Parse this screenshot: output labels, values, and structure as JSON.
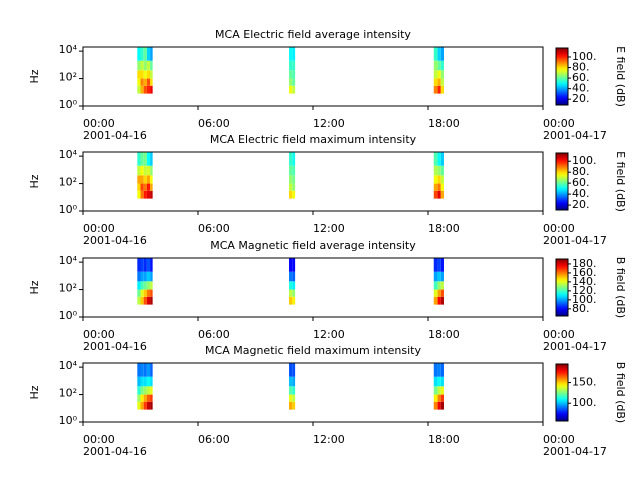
{
  "chart_data": [
    {
      "type": "spectrogram",
      "title": "MCA  Electric field average intensity",
      "ylabel": "Hz",
      "colorbar_label": "E field (dB)",
      "colormap": "jet",
      "yscale": "log",
      "xlim": [
        "2001-04-16T00:00",
        "2001-04-17T00:00"
      ],
      "xticks": [
        {
          "value": "2001-04-16T00:00",
          "label": "00:00",
          "date": "2001-04-16"
        },
        {
          "value": "2001-04-16T06:00",
          "label": "06:00"
        },
        {
          "value": "2001-04-16T12:00",
          "label": "12:00"
        },
        {
          "value": "2001-04-16T18:00",
          "label": "18:00"
        },
        {
          "value": "2001-04-17T00:00",
          "label": "00:00",
          "date": "2001-04-17"
        }
      ],
      "ylim": [
        1,
        20000
      ],
      "yticks": [
        {
          "value": 1,
          "label": "10⁰"
        },
        {
          "value": 100,
          "label": "10²"
        },
        {
          "value": 10000,
          "label": "10⁴"
        }
      ],
      "clim": [
        9,
        117
      ],
      "cticks": [
        {
          "value": 20,
          "label": "20."
        },
        {
          "value": 40,
          "label": "40."
        },
        {
          "value": 60,
          "label": "60."
        },
        {
          "value": 80,
          "label": "80."
        },
        {
          "value": 100,
          "label": "100."
        }
      ],
      "time_bins": [
        [
          "2001-04-16T02:50",
          "2001-04-16T03:00"
        ],
        [
          "2001-04-16T03:00",
          "2001-04-16T03:10"
        ],
        [
          "2001-04-16T03:10",
          "2001-04-16T03:20"
        ],
        [
          "2001-04-16T03:20",
          "2001-04-16T03:30"
        ],
        [
          "2001-04-16T03:30",
          "2001-04-16T03:38"
        ],
        [
          "2001-04-16T10:45",
          "2001-04-16T10:55"
        ],
        [
          "2001-04-16T10:55",
          "2001-04-16T11:04"
        ],
        [
          "2001-04-16T18:18",
          "2001-04-16T18:30"
        ],
        [
          "2001-04-16T18:30",
          "2001-04-16T18:40"
        ],
        [
          "2001-04-16T18:40",
          "2001-04-16T18:50"
        ]
      ],
      "freq_bins": [
        8,
        30,
        100,
        400,
        2000,
        20000
      ],
      "z": [
        [
          70,
          75,
          80,
          65,
          50
        ],
        [
          85,
          90,
          80,
          70,
          55
        ],
        [
          95,
          85,
          75,
          65,
          60
        ],
        [
          100,
          95,
          80,
          70,
          45
        ],
        [
          105,
          80,
          70,
          60,
          40
        ],
        [
          75,
          65,
          60,
          55,
          50
        ],
        [
          70,
          60,
          58,
          55,
          48
        ],
        [
          90,
          80,
          70,
          65,
          55
        ],
        [
          100,
          85,
          75,
          60,
          45
        ],
        [
          80,
          70,
          65,
          55,
          40
        ]
      ]
    },
    {
      "type": "spectrogram",
      "title": "MCA  Electric field maximum intensity",
      "ylabel": "Hz",
      "colorbar_label": "E field (dB)",
      "colormap": "jet",
      "yscale": "log",
      "xlim": [
        "2001-04-16T00:00",
        "2001-04-17T00:00"
      ],
      "xticks": [
        {
          "value": "2001-04-16T00:00",
          "label": "00:00",
          "date": "2001-04-16"
        },
        {
          "value": "2001-04-16T06:00",
          "label": "06:00"
        },
        {
          "value": "2001-04-16T12:00",
          "label": "12:00"
        },
        {
          "value": "2001-04-16T18:00",
          "label": "18:00"
        },
        {
          "value": "2001-04-17T00:00",
          "label": "00:00",
          "date": "2001-04-17"
        }
      ],
      "ylim": [
        1,
        20000
      ],
      "yticks": [
        {
          "value": 1,
          "label": "10⁰"
        },
        {
          "value": 100,
          "label": "10²"
        },
        {
          "value": 10000,
          "label": "10⁴"
        }
      ],
      "clim": [
        11,
        115
      ],
      "cticks": [
        {
          "value": 20,
          "label": "20."
        },
        {
          "value": 40,
          "label": "40."
        },
        {
          "value": 60,
          "label": "60."
        },
        {
          "value": 80,
          "label": "80."
        },
        {
          "value": 100,
          "label": "100."
        }
      ],
      "time_bins": [
        [
          "2001-04-16T02:50",
          "2001-04-16T03:00"
        ],
        [
          "2001-04-16T03:00",
          "2001-04-16T03:10"
        ],
        [
          "2001-04-16T03:10",
          "2001-04-16T03:20"
        ],
        [
          "2001-04-16T03:20",
          "2001-04-16T03:30"
        ],
        [
          "2001-04-16T03:30",
          "2001-04-16T03:38"
        ],
        [
          "2001-04-16T10:45",
          "2001-04-16T10:55"
        ],
        [
          "2001-04-16T10:55",
          "2001-04-16T11:04"
        ],
        [
          "2001-04-16T18:18",
          "2001-04-16T18:30"
        ],
        [
          "2001-04-16T18:30",
          "2001-04-16T18:40"
        ],
        [
          "2001-04-16T18:40",
          "2001-04-16T18:50"
        ]
      ],
      "freq_bins": [
        8,
        30,
        100,
        400,
        2000,
        20000
      ],
      "z": [
        [
          75,
          80,
          85,
          70,
          55
        ],
        [
          90,
          95,
          85,
          75,
          60
        ],
        [
          100,
          90,
          80,
          70,
          62
        ],
        [
          105,
          100,
          85,
          72,
          50
        ],
        [
          108,
          85,
          75,
          65,
          45
        ],
        [
          80,
          70,
          65,
          60,
          55
        ],
        [
          75,
          65,
          62,
          58,
          52
        ],
        [
          95,
          85,
          75,
          68,
          58
        ],
        [
          105,
          90,
          80,
          65,
          50
        ],
        [
          85,
          75,
          70,
          60,
          45
        ]
      ]
    },
    {
      "type": "spectrogram",
      "title": "MCA  Magnetic field average intensity",
      "ylabel": "Hz",
      "colorbar_label": "B field (dB)",
      "colormap": "jet",
      "yscale": "log",
      "xlim": [
        "2001-04-16T00:00",
        "2001-04-17T00:00"
      ],
      "xticks": [
        {
          "value": "2001-04-16T00:00",
          "label": "00:00",
          "date": "2001-04-16"
        },
        {
          "value": "2001-04-16T06:00",
          "label": "06:00"
        },
        {
          "value": "2001-04-16T12:00",
          "label": "12:00"
        },
        {
          "value": "2001-04-16T18:00",
          "label": "18:00"
        },
        {
          "value": "2001-04-17T00:00",
          "label": "00:00",
          "date": "2001-04-17"
        }
      ],
      "ylim": [
        1,
        20000
      ],
      "yticks": [
        {
          "value": 1,
          "label": "10⁰"
        },
        {
          "value": 100,
          "label": "10²"
        },
        {
          "value": 10000,
          "label": "10⁴"
        }
      ],
      "clim": [
        64,
        191
      ],
      "cticks": [
        {
          "value": 80,
          "label": "80."
        },
        {
          "value": 100,
          "label": "100."
        },
        {
          "value": 120,
          "label": "120."
        },
        {
          "value": 140,
          "label": "140."
        },
        {
          "value": 160,
          "label": "160."
        },
        {
          "value": 180,
          "label": "180."
        }
      ],
      "time_bins": [
        [
          "2001-04-16T02:50",
          "2001-04-16T03:00"
        ],
        [
          "2001-04-16T03:00",
          "2001-04-16T03:10"
        ],
        [
          "2001-04-16T03:10",
          "2001-04-16T03:20"
        ],
        [
          "2001-04-16T03:20",
          "2001-04-16T03:30"
        ],
        [
          "2001-04-16T03:30",
          "2001-04-16T03:38"
        ],
        [
          "2001-04-16T10:45",
          "2001-04-16T10:55"
        ],
        [
          "2001-04-16T10:55",
          "2001-04-16T11:04"
        ],
        [
          "2001-04-16T18:18",
          "2001-04-16T18:30"
        ],
        [
          "2001-04-16T18:30",
          "2001-04-16T18:40"
        ],
        [
          "2001-04-16T18:40",
          "2001-04-16T18:50"
        ]
      ],
      "freq_bins": [
        8,
        30,
        100,
        400,
        2000,
        20000
      ],
      "z": [
        [
          135,
          125,
          110,
          95,
          85
        ],
        [
          150,
          140,
          120,
          100,
          88
        ],
        [
          165,
          150,
          125,
          100,
          85
        ],
        [
          180,
          160,
          130,
          105,
          90
        ],
        [
          185,
          165,
          135,
          100,
          82
        ],
        [
          150,
          135,
          115,
          95,
          80
        ],
        [
          145,
          130,
          110,
          92,
          80
        ],
        [
          155,
          140,
          120,
          100,
          85
        ],
        [
          175,
          155,
          130,
          105,
          88
        ],
        [
          185,
          165,
          135,
          100,
          82
        ]
      ]
    },
    {
      "type": "spectrogram",
      "title": "MCA  Magnetic field maximum intensity",
      "ylabel": "Hz",
      "colorbar_label": "B field (dB)",
      "colormap": "jet",
      "yscale": "log",
      "xlim": [
        "2001-04-16T00:00",
        "2001-04-17T00:00"
      ],
      "xticks": [
        {
          "value": "2001-04-16T00:00",
          "label": "00:00",
          "date": "2001-04-16"
        },
        {
          "value": "2001-04-16T06:00",
          "label": "06:00"
        },
        {
          "value": "2001-04-16T12:00",
          "label": "12:00"
        },
        {
          "value": "2001-04-16T18:00",
          "label": "18:00"
        },
        {
          "value": "2001-04-17T00:00",
          "label": "00:00",
          "date": "2001-04-17"
        }
      ],
      "ylim": [
        1,
        20000
      ],
      "yticks": [
        {
          "value": 1,
          "label": "10⁰"
        },
        {
          "value": 100,
          "label": "10²"
        },
        {
          "value": 10000,
          "label": "10⁴"
        }
      ],
      "clim": [
        57,
        195
      ],
      "cticks": [
        {
          "value": 100,
          "label": "100."
        },
        {
          "value": 150,
          "label": "150."
        }
      ],
      "time_bins": [
        [
          "2001-04-16T02:50",
          "2001-04-16T03:00"
        ],
        [
          "2001-04-16T03:00",
          "2001-04-16T03:10"
        ],
        [
          "2001-04-16T03:10",
          "2001-04-16T03:20"
        ],
        [
          "2001-04-16T03:20",
          "2001-04-16T03:30"
        ],
        [
          "2001-04-16T03:30",
          "2001-04-16T03:38"
        ],
        [
          "2001-04-16T10:45",
          "2001-04-16T10:55"
        ],
        [
          "2001-04-16T10:55",
          "2001-04-16T11:04"
        ],
        [
          "2001-04-16T18:18",
          "2001-04-16T18:30"
        ],
        [
          "2001-04-16T18:30",
          "2001-04-16T18:40"
        ],
        [
          "2001-04-16T18:40",
          "2001-04-16T18:50"
        ]
      ],
      "freq_bins": [
        8,
        30,
        100,
        400,
        2000,
        20000
      ],
      "z": [
        [
          140,
          130,
          115,
          100,
          90
        ],
        [
          155,
          145,
          125,
          105,
          92
        ],
        [
          170,
          155,
          130,
          105,
          90
        ],
        [
          185,
          165,
          135,
          110,
          95
        ],
        [
          190,
          170,
          140,
          105,
          88
        ],
        [
          155,
          140,
          120,
          100,
          85
        ],
        [
          150,
          135,
          115,
          97,
          85
        ],
        [
          160,
          145,
          125,
          105,
          90
        ],
        [
          180,
          160,
          135,
          110,
          92
        ],
        [
          190,
          170,
          140,
          105,
          88
        ]
      ]
    }
  ]
}
